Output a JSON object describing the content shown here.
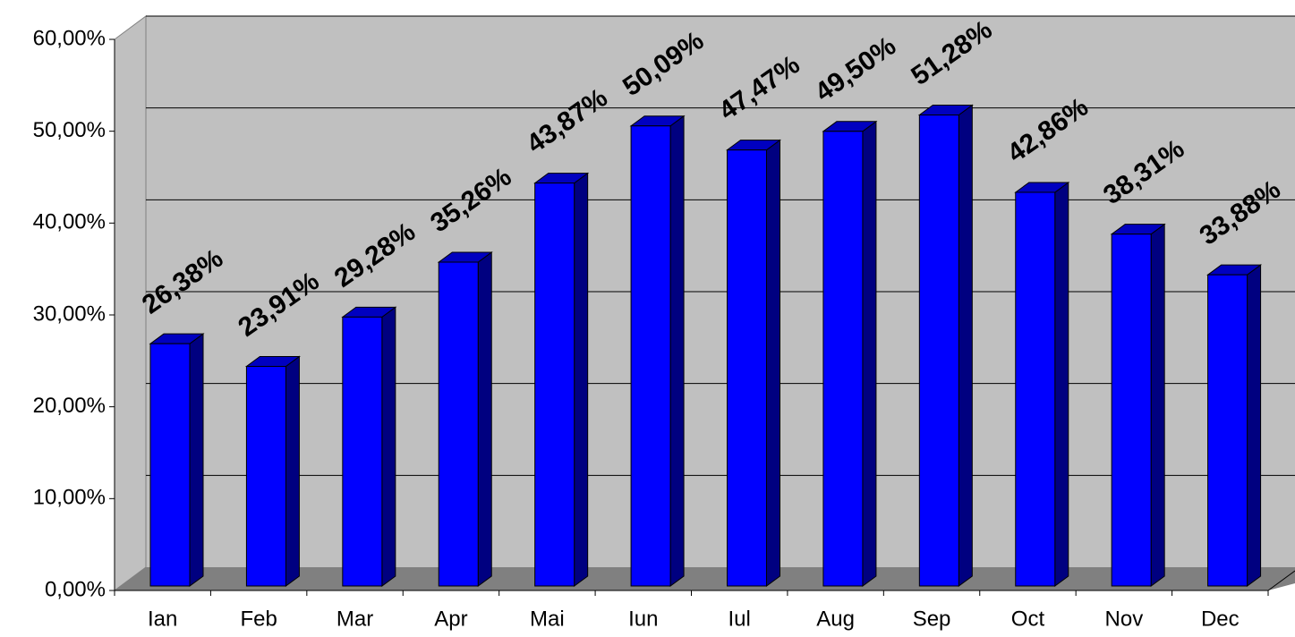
{
  "chart_data": {
    "type": "bar",
    "categories": [
      "Ian",
      "Feb",
      "Mar",
      "Apr",
      "Mai",
      "Iun",
      "Iul",
      "Aug",
      "Sep",
      "Oct",
      "Nov",
      "Dec"
    ],
    "values": [
      26.38,
      23.91,
      29.28,
      35.26,
      43.87,
      50.09,
      47.47,
      49.5,
      51.28,
      42.86,
      38.31,
      33.88
    ],
    "value_labels": [
      "26,38%",
      "23,91%",
      "29,28%",
      "35,26%",
      "43,87%",
      "50,09%",
      "47,47%",
      "49,50%",
      "51,28%",
      "42,86%",
      "38,31%",
      "33,88%"
    ],
    "color": "#0000ff",
    "ylim": [
      0,
      60
    ],
    "yticks": [
      {
        "value": 0,
        "label": "0,00%"
      },
      {
        "value": 10,
        "label": "10,00%"
      },
      {
        "value": 20,
        "label": "20,00%"
      },
      {
        "value": 30,
        "label": "30,00%"
      },
      {
        "value": 40,
        "label": "40,00%"
      },
      {
        "value": 50,
        "label": "50,00%"
      },
      {
        "value": 60,
        "label": "60,00%"
      }
    ],
    "grid": true
  }
}
